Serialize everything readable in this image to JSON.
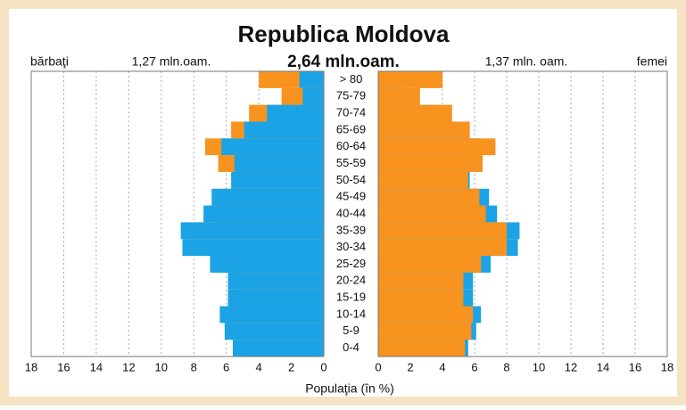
{
  "chart_data": {
    "type": "pyramid",
    "title": "Republica Moldova",
    "total": "2,64 mln.oam.",
    "x_label": "Populaţia (în %)",
    "categories": [
      "> 80",
      "75-79",
      "70-74",
      "65-69",
      "60-64",
      "55-59",
      "50-54",
      "45-49",
      "40-44",
      "35-39",
      "30-34",
      "25-29",
      "20-24",
      "15-19",
      "10-14",
      "5-9",
      "0-4"
    ],
    "series": [
      {
        "name": "bărbaţi",
        "total": "1,27 mln.oam.",
        "color": "#1ba3e6",
        "values": [
          1.5,
          1.3,
          3.5,
          4.9,
          6.3,
          5.5,
          5.7,
          6.9,
          7.4,
          8.8,
          8.7,
          7.0,
          5.9,
          5.9,
          6.4,
          6.1,
          5.6
        ]
      },
      {
        "name": "femei",
        "total": "1,37 mln. oam.",
        "color": "#f7931e",
        "values": [
          4.0,
          2.6,
          4.6,
          5.7,
          7.3,
          6.5,
          5.6,
          6.3,
          6.7,
          8.0,
          8.0,
          6.4,
          5.3,
          5.3,
          5.9,
          5.8,
          5.4
        ]
      }
    ],
    "xlim": [
      0,
      18
    ],
    "xticks": [
      0,
      2,
      4,
      6,
      8,
      10,
      12,
      14,
      16,
      18
    ],
    "grid": true
  }
}
